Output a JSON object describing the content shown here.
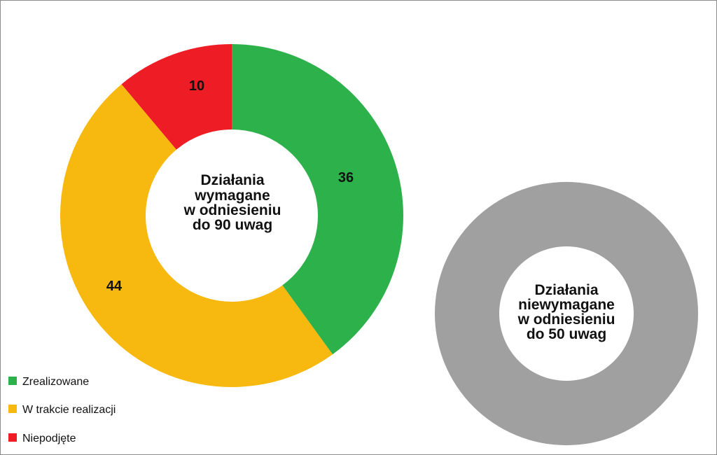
{
  "chart_data": [
    {
      "type": "pie",
      "variant": "donut",
      "center_label": [
        "Działania",
        "wymagane",
        "w odniesieniu",
        "do 90 uwag"
      ],
      "categories": [
        "Zrealizowane",
        "W trakcie realizacji",
        "Niepodjęte"
      ],
      "values": [
        36,
        44,
        10
      ],
      "colors": [
        "#2db14a",
        "#f7b90f",
        "#ee1c25"
      ],
      "data_labels": [
        "36",
        "44",
        "10"
      ],
      "legend": {
        "placement": "bottom-left",
        "entries": [
          {
            "label": "Zrealizowane",
            "color": "#2db14a"
          },
          {
            "label": "W trakcie realizacji",
            "color": "#f7b90f"
          },
          {
            "label": "Niepodjęte",
            "color": "#ee1c25"
          }
        ]
      }
    },
    {
      "type": "pie",
      "variant": "donut",
      "center_label": [
        "Działania",
        "niewymagane",
        "w odniesieniu",
        "do 50 uwag"
      ],
      "values": [
        50
      ],
      "colors": [
        "#a0a0a0"
      ]
    }
  ]
}
